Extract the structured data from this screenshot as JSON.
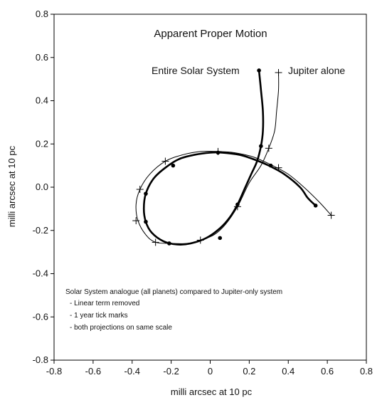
{
  "chart_data": {
    "type": "line",
    "title": "Apparent Proper Motion",
    "xlabel": "milli arcsec at 10 pc",
    "ylabel": "milli arcsec at 10 pc",
    "xlim": [
      -0.8,
      0.8
    ],
    "ylim": [
      -0.8,
      0.8
    ],
    "x_ticks": [
      "-0.8",
      "-0.6",
      "-0.4",
      "-0.2",
      "0",
      "0.2",
      "0.4",
      "0.6",
      "0.8"
    ],
    "y_ticks": [
      "0.8",
      "0.6",
      "0.4",
      "0.2",
      "0.0",
      "-0.2",
      "-0.4",
      "-0.6",
      "-0.8"
    ],
    "grid": false,
    "series": [
      {
        "name": "Entire Solar System",
        "style": "thick",
        "color": "#000000",
        "path": [
          [
            0.25,
            0.54
          ],
          [
            0.26,
            0.45
          ],
          [
            0.27,
            0.35
          ],
          [
            0.27,
            0.26
          ],
          [
            0.26,
            0.19
          ],
          [
            0.24,
            0.12
          ],
          [
            0.21,
            0.06
          ],
          [
            0.18,
            0.0
          ],
          [
            0.14,
            -0.08
          ],
          [
            0.1,
            -0.14
          ],
          [
            0.05,
            -0.19
          ],
          [
            -0.02,
            -0.235
          ],
          [
            -0.1,
            -0.26
          ],
          [
            -0.17,
            -0.265
          ],
          [
            -0.24,
            -0.25
          ],
          [
            -0.3,
            -0.21
          ],
          [
            -0.33,
            -0.16
          ],
          [
            -0.34,
            -0.1
          ],
          [
            -0.33,
            -0.03
          ],
          [
            -0.29,
            0.04
          ],
          [
            -0.23,
            0.09
          ],
          [
            -0.16,
            0.13
          ],
          [
            -0.08,
            0.15
          ],
          [
            0.0,
            0.16
          ],
          [
            0.06,
            0.16
          ],
          [
            0.15,
            0.15
          ],
          [
            0.22,
            0.13
          ],
          [
            0.3,
            0.1
          ],
          [
            0.38,
            0.06
          ],
          [
            0.46,
            0.0
          ],
          [
            0.5,
            -0.05
          ],
          [
            0.54,
            -0.085
          ]
        ],
        "ticks": [
          [
            0.25,
            0.54
          ],
          [
            0.26,
            0.19
          ],
          [
            0.14,
            -0.08
          ],
          [
            0.05,
            -0.235
          ],
          [
            -0.21,
            -0.26
          ],
          [
            -0.33,
            -0.16
          ],
          [
            -0.33,
            -0.03
          ],
          [
            -0.19,
            0.1
          ],
          [
            0.04,
            0.16
          ],
          [
            0.31,
            0.1
          ],
          [
            0.54,
            -0.085
          ]
        ]
      },
      {
        "name": "Jupiter alone",
        "style": "thin",
        "color": "#000000",
        "path": [
          [
            0.35,
            0.53
          ],
          [
            0.35,
            0.45
          ],
          [
            0.34,
            0.35
          ],
          [
            0.33,
            0.26
          ],
          [
            0.3,
            0.18
          ],
          [
            0.26,
            0.1
          ],
          [
            0.2,
            0.02
          ],
          [
            0.14,
            -0.09
          ],
          [
            0.08,
            -0.17
          ],
          [
            0.02,
            -0.22
          ],
          [
            -0.05,
            -0.245
          ],
          [
            -0.12,
            -0.26
          ],
          [
            -0.2,
            -0.26
          ],
          [
            -0.28,
            -0.255
          ],
          [
            -0.33,
            -0.22
          ],
          [
            -0.37,
            -0.155
          ],
          [
            -0.38,
            -0.08
          ],
          [
            -0.36,
            -0.01
          ],
          [
            -0.31,
            0.06
          ],
          [
            -0.23,
            0.12
          ],
          [
            -0.14,
            0.15
          ],
          [
            -0.05,
            0.165
          ],
          [
            0.04,
            0.165
          ],
          [
            0.12,
            0.16
          ],
          [
            0.22,
            0.14
          ],
          [
            0.32,
            0.1
          ],
          [
            0.4,
            0.06
          ],
          [
            0.48,
            0.0
          ],
          [
            0.56,
            -0.07
          ],
          [
            0.62,
            -0.13
          ]
        ],
        "ticks": [
          [
            0.35,
            0.53
          ],
          [
            0.3,
            0.18
          ],
          [
            0.14,
            -0.09
          ],
          [
            -0.05,
            -0.245
          ],
          [
            -0.28,
            -0.255
          ],
          [
            -0.38,
            -0.155
          ],
          [
            -0.36,
            -0.01
          ],
          [
            -0.23,
            0.12
          ],
          [
            0.04,
            0.165
          ],
          [
            0.35,
            0.09
          ],
          [
            0.62,
            -0.13
          ]
        ]
      }
    ],
    "annotations": {
      "note_title": "Solar System analogue (all planets) compared to Jupiter-only system",
      "bullets": [
        "- Linear term removed",
        "- 1 year tick marks",
        "- both projections on same scale"
      ]
    }
  }
}
